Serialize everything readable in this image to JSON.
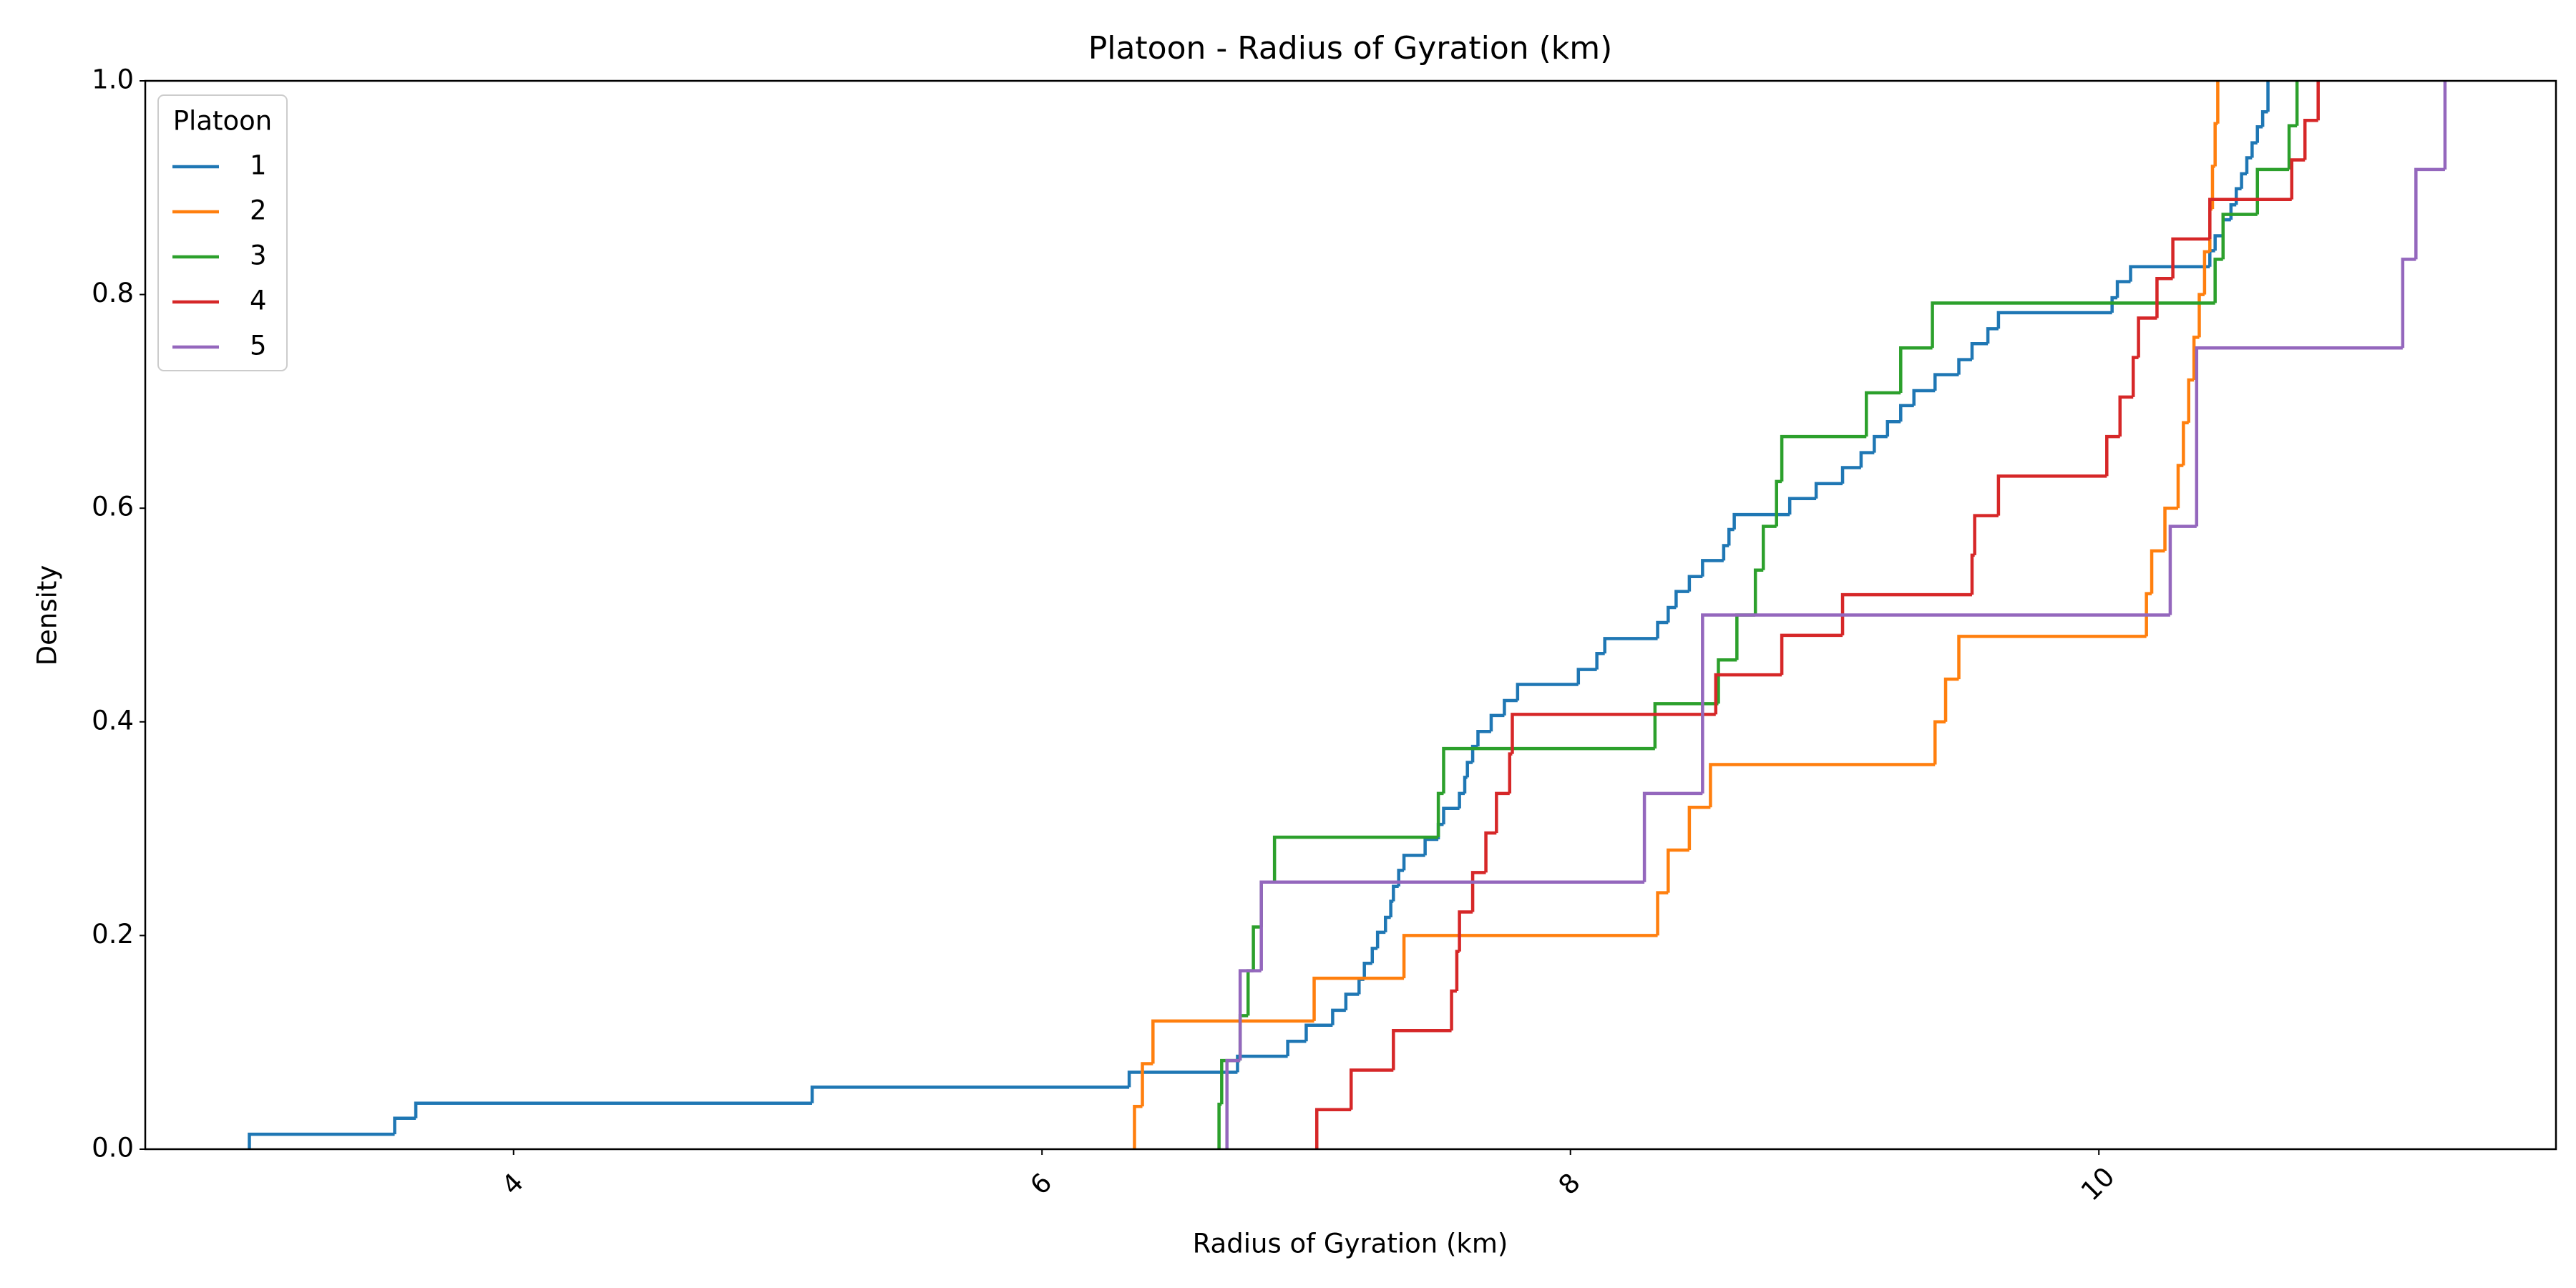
{
  "chart_data": {
    "type": "line",
    "drawstyle": "steps-post",
    "title": "Platoon - Radius of Gyration (km)",
    "xlabel": "Radius of Gyration (km)",
    "ylabel": "Density",
    "xlim": [
      2.606,
      11.73
    ],
    "xticks": [
      4,
      6,
      8,
      10
    ],
    "ylim": [
      0,
      1
    ],
    "yticks": [
      {
        "value": 0,
        "label": "0.0"
      },
      0.2,
      0.4,
      0.6,
      0.8,
      {
        "value": 1,
        "label": "1.0"
      }
    ],
    "grid": false,
    "legend": {
      "title": "Platoon",
      "loc": "upper left"
    },
    "series": [
      {
        "name": "1",
        "color": "#1f77b4",
        "x": [
          3.0,
          3.55,
          3.63,
          5.13,
          6.33,
          6.74,
          6.93,
          7.0,
          7.1,
          7.15,
          7.2,
          7.22,
          7.25,
          7.27,
          7.3,
          7.32,
          7.33,
          7.35,
          7.37,
          7.45,
          7.5,
          7.52,
          7.58,
          7.6,
          7.61,
          7.63,
          7.65,
          7.7,
          7.75,
          7.8,
          8.03,
          8.1,
          8.13,
          8.33,
          8.37,
          8.4,
          8.45,
          8.5,
          8.58,
          8.6,
          8.62,
          8.83,
          8.93,
          9.03,
          9.1,
          9.15,
          9.2,
          9.25,
          9.3,
          9.38,
          9.47,
          9.52,
          9.58,
          9.62,
          10.05,
          10.07,
          10.12,
          10.42,
          10.44,
          10.47,
          10.5,
          10.52,
          10.54,
          10.56,
          10.58,
          10.6,
          10.62,
          10.64
        ],
        "values": [
          0.014,
          0.029,
          0.043,
          0.058,
          0.072,
          0.087,
          0.101,
          0.116,
          0.13,
          0.145,
          0.159,
          0.174,
          0.188,
          0.203,
          0.217,
          0.232,
          0.246,
          0.261,
          0.275,
          0.29,
          0.304,
          0.319,
          0.333,
          0.348,
          0.362,
          0.377,
          0.391,
          0.406,
          0.42,
          0.435,
          0.449,
          0.464,
          0.478,
          0.493,
          0.507,
          0.522,
          0.536,
          0.551,
          0.565,
          0.58,
          0.594,
          0.609,
          0.623,
          0.638,
          0.652,
          0.667,
          0.681,
          0.696,
          0.71,
          0.725,
          0.739,
          0.754,
          0.768,
          0.783,
          0.797,
          0.812,
          0.826,
          0.841,
          0.855,
          0.87,
          0.884,
          0.899,
          0.913,
          0.928,
          0.942,
          0.957,
          0.971,
          1.0
        ]
      },
      {
        "name": "2",
        "color": "#ff7f0e",
        "x": [
          6.35,
          6.38,
          6.42,
          7.03,
          7.37,
          8.33,
          8.37,
          8.45,
          8.53,
          9.38,
          9.42,
          9.47,
          10.18,
          10.2,
          10.25,
          10.3,
          10.32,
          10.34,
          10.36,
          10.38,
          10.4,
          10.42,
          10.43,
          10.44,
          10.45
        ],
        "values": [
          0.04,
          0.08,
          0.12,
          0.16,
          0.2,
          0.24,
          0.28,
          0.32,
          0.36,
          0.4,
          0.44,
          0.48,
          0.52,
          0.56,
          0.6,
          0.64,
          0.68,
          0.72,
          0.76,
          0.8,
          0.84,
          0.88,
          0.92,
          0.96,
          1.0
        ]
      },
      {
        "name": "3",
        "color": "#2ca02c",
        "x": [
          6.67,
          6.68,
          6.75,
          6.78,
          6.8,
          6.83,
          6.88,
          7.5,
          7.52,
          8.32,
          8.56,
          8.63,
          8.7,
          8.73,
          8.78,
          8.8,
          9.12,
          9.25,
          9.37,
          10.44,
          10.47,
          10.6,
          10.72,
          10.75
        ],
        "values": [
          0.042,
          0.083,
          0.125,
          0.167,
          0.208,
          0.25,
          0.292,
          0.333,
          0.375,
          0.417,
          0.458,
          0.5,
          0.542,
          0.583,
          0.625,
          0.667,
          0.708,
          0.75,
          0.792,
          0.833,
          0.875,
          0.917,
          0.958,
          1.0
        ]
      },
      {
        "name": "4",
        "color": "#d62728",
        "x": [
          7.04,
          7.17,
          7.33,
          7.55,
          7.57,
          7.58,
          7.63,
          7.68,
          7.72,
          7.77,
          7.78,
          8.55,
          8.8,
          9.03,
          9.52,
          9.53,
          9.62,
          10.03,
          10.08,
          10.13,
          10.15,
          10.22,
          10.28,
          10.42,
          10.73,
          10.78,
          10.83
        ],
        "values": [
          0.037,
          0.074,
          0.111,
          0.148,
          0.185,
          0.222,
          0.259,
          0.296,
          0.333,
          0.37,
          0.407,
          0.444,
          0.481,
          0.519,
          0.556,
          0.593,
          0.63,
          0.667,
          0.704,
          0.741,
          0.778,
          0.815,
          0.852,
          0.889,
          0.926,
          0.963,
          1.0
        ]
      },
      {
        "name": "5",
        "color": "#9467bd",
        "x": [
          6.7,
          6.75,
          6.83,
          8.28,
          8.5,
          10.27,
          10.37,
          11.15,
          11.2,
          11.31
        ],
        "values": [
          0.083,
          0.167,
          0.25,
          0.333,
          0.5,
          0.583,
          0.75,
          0.833,
          0.917,
          1.0
        ]
      }
    ]
  }
}
